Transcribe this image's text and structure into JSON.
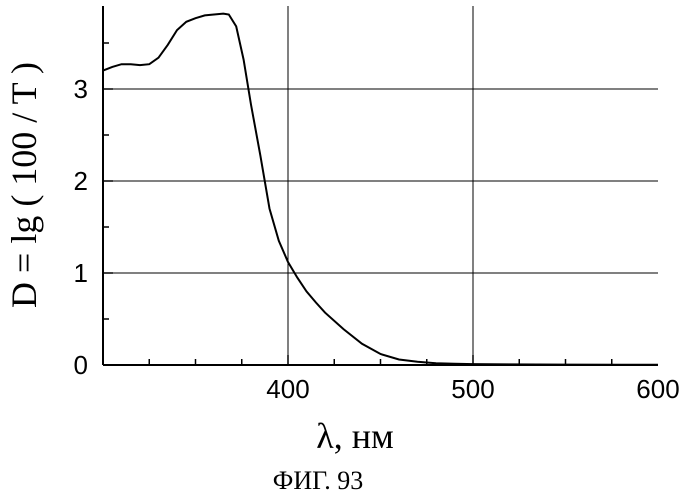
{
  "chart_data": {
    "type": "line",
    "xlabel": "λ, нм",
    "ylabel": "D = lg ( 100 / T )",
    "xlim": [
      300,
      600
    ],
    "ylim": [
      0,
      3.85
    ],
    "xticks": [
      400,
      500,
      600
    ],
    "xtick_labels": [
      "400",
      "500",
      "600"
    ],
    "yticks": [
      0,
      1,
      2,
      3
    ],
    "ytick_labels": [
      "0",
      "1",
      "2",
      "3"
    ],
    "grid": true,
    "series": [
      {
        "x": [
          300,
          305,
          310,
          315,
          320,
          325,
          330,
          335,
          340,
          345,
          350,
          355,
          360,
          365,
          368,
          372,
          376,
          380,
          385,
          390,
          395,
          400,
          405,
          410,
          415,
          420,
          430,
          440,
          450,
          460,
          470,
          480,
          490,
          500,
          520,
          550,
          580,
          600
        ],
        "y": [
          3.2,
          3.24,
          3.27,
          3.27,
          3.26,
          3.27,
          3.34,
          3.48,
          3.64,
          3.73,
          3.77,
          3.8,
          3.81,
          3.82,
          3.81,
          3.68,
          3.32,
          2.83,
          2.28,
          1.7,
          1.35,
          1.12,
          0.95,
          0.8,
          0.68,
          0.57,
          0.39,
          0.23,
          0.12,
          0.06,
          0.035,
          0.02,
          0.013,
          0.01,
          0.007,
          0.004,
          0.002,
          0.002
        ]
      }
    ]
  },
  "caption": "ФИГ. 93"
}
